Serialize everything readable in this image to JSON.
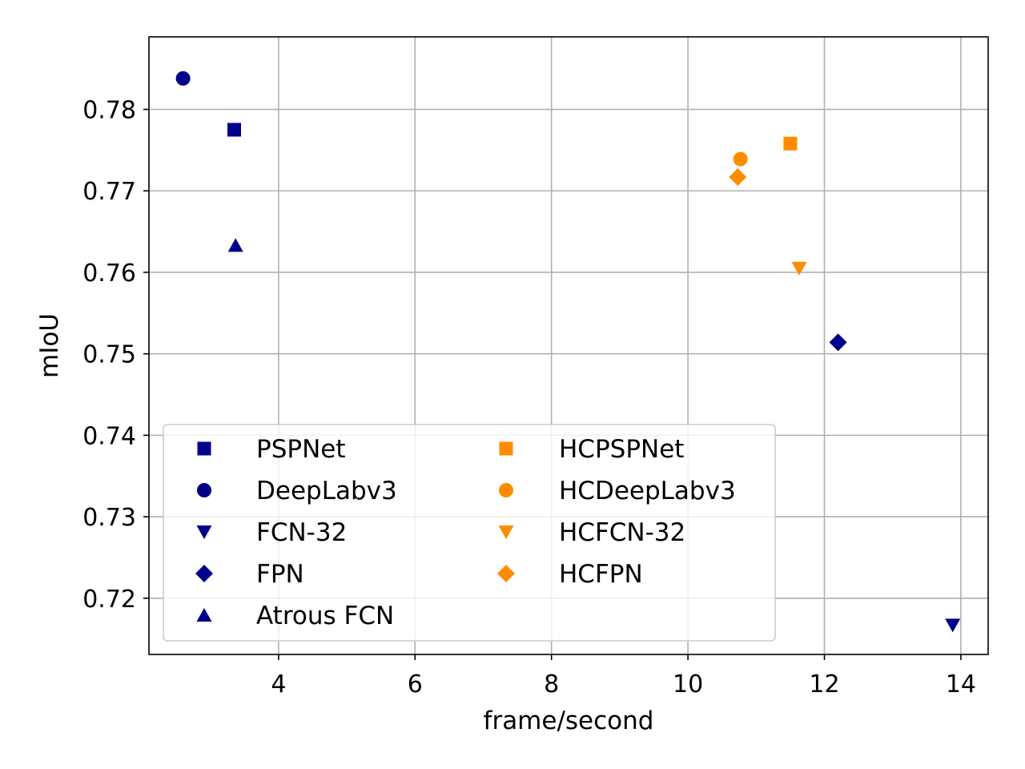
{
  "chart_data": {
    "type": "scatter",
    "title": "",
    "xlabel": "frame/second",
    "ylabel": "mIoU",
    "xlim": [
      2.1,
      14.4
    ],
    "ylim": [
      0.7131,
      0.7889
    ],
    "xticks": [
      4,
      6,
      8,
      10,
      12,
      14
    ],
    "xtick_labels": [
      "4",
      "6",
      "8",
      "10",
      "12",
      "14"
    ],
    "yticks": [
      0.72,
      0.73,
      0.74,
      0.75,
      0.76,
      0.77,
      0.78
    ],
    "ytick_labels": [
      "0.72",
      "0.73",
      "0.74",
      "0.75",
      "0.76",
      "0.77",
      "0.78"
    ],
    "grid": true,
    "legend_position": "lower-left",
    "legend_columns": 2,
    "colors": {
      "baseline": "#00008b",
      "hc": "#ff8c00"
    },
    "series": [
      {
        "name": "PSPNet",
        "marker": "square",
        "color": "#00008b",
        "x": [
          3.35
        ],
        "y": [
          0.7775
        ]
      },
      {
        "name": "DeepLabv3",
        "marker": "circle",
        "color": "#00008b",
        "x": [
          2.6
        ],
        "y": [
          0.7838
        ]
      },
      {
        "name": "FCN-32",
        "marker": "triangle-down",
        "color": "#00008b",
        "x": [
          13.88
        ],
        "y": [
          0.7167
        ]
      },
      {
        "name": "FPN",
        "marker": "diamond",
        "color": "#00008b",
        "x": [
          12.2
        ],
        "y": [
          0.7514
        ]
      },
      {
        "name": "Atrous FCN",
        "marker": "triangle-up",
        "color": "#00008b",
        "x": [
          3.37
        ],
        "y": [
          0.7633
        ]
      },
      {
        "name": "HCPSPNet",
        "marker": "square",
        "color": "#ff8c00",
        "x": [
          11.5
        ],
        "y": [
          0.7758
        ]
      },
      {
        "name": "HCDeepLabv3",
        "marker": "circle",
        "color": "#ff8c00",
        "x": [
          10.77
        ],
        "y": [
          0.7739
        ]
      },
      {
        "name": "HCFCN-32",
        "marker": "triangle-down",
        "color": "#ff8c00",
        "x": [
          11.63
        ],
        "y": [
          0.7605
        ]
      },
      {
        "name": "HCFPN",
        "marker": "diamond",
        "color": "#ff8c00",
        "x": [
          10.73
        ],
        "y": [
          0.7717
        ]
      }
    ]
  }
}
